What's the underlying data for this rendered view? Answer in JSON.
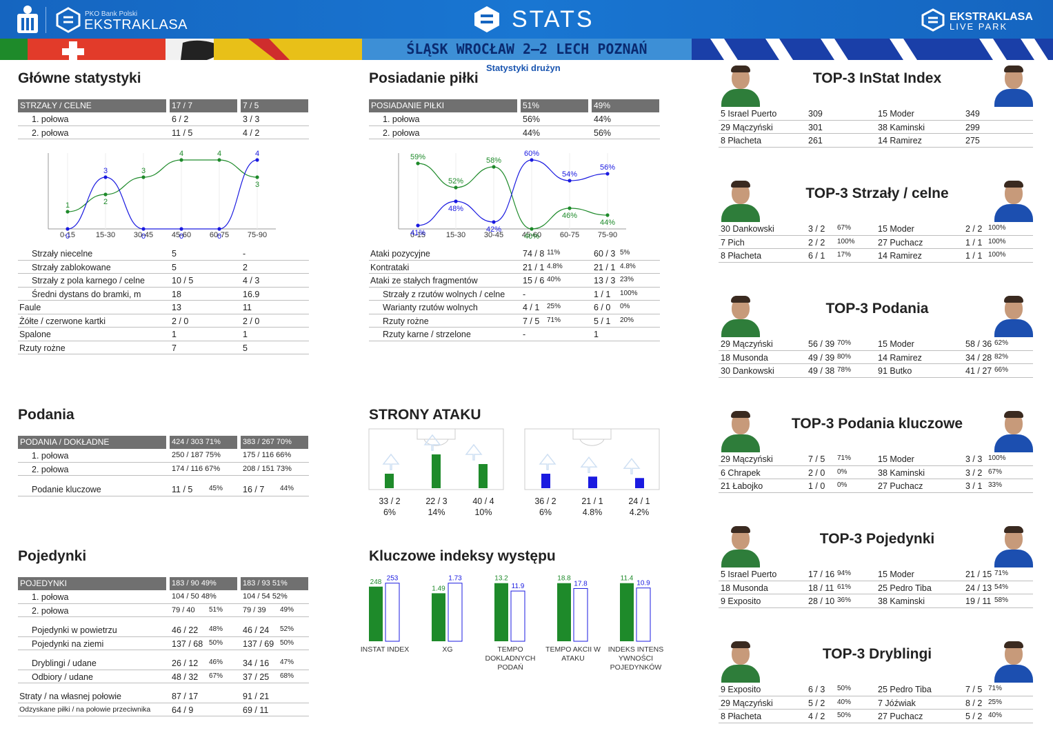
{
  "header": {
    "bank": "PKO Bank Polski",
    "league": "EKSTRAKLASA",
    "title": "STATS",
    "live1": "EKSTRAKLASA",
    "live2": "LIVE PARK"
  },
  "match": "ŚLĄSK WROCŁAW 2–2  LECH POZNAŃ",
  "subtitle": "Statystyki drużyn",
  "colors": {
    "home": "#1e8a2a",
    "away": "#1a1ae0",
    "header": "#1565c0",
    "table_header": "#707070"
  },
  "main": {
    "title": "Główne statystyki",
    "head": [
      "STRZAŁY / CELNE",
      "17 / 7",
      "7 / 5"
    ],
    "halves": [
      [
        "1. połowa",
        "6 / 2",
        "3 / 3"
      ],
      [
        "2. połowa",
        "11 / 5",
        "4 / 2"
      ]
    ],
    "rows": [
      [
        "Strzały niecelne",
        "5",
        "-"
      ],
      [
        "Strzały zablokowane",
        "5",
        "2"
      ],
      [
        "Strzały z pola karnego / celne",
        "10 / 5",
        "4 / 3"
      ],
      [
        "Średni dystans do bramki, m",
        "18",
        "16.9"
      ],
      [
        "Faule",
        "13",
        "11"
      ],
      [
        "Żółte / czerwone kartki",
        "2 / 0",
        "2 / 0"
      ],
      [
        "Spalone",
        "1",
        "1"
      ],
      [
        "Rzuty rożne",
        "7",
        "5"
      ]
    ]
  },
  "chart_data": [
    {
      "type": "line",
      "categories": [
        "0-15",
        "15-30",
        "30-45",
        "45-60",
        "60-75",
        "75-90"
      ],
      "series": [
        {
          "values": [
            1,
            2,
            3,
            4,
            4,
            3
          ]
        },
        {
          "values": [
            0,
            3,
            0,
            0,
            0,
            4
          ]
        }
      ]
    },
    {
      "type": "line",
      "categories": [
        "0-15",
        "15-30",
        "30-45",
        "45-60",
        "60-75",
        "75-90"
      ],
      "series": [
        {
          "values": [
            59,
            52,
            58,
            40,
            46,
            44
          ]
        },
        {
          "values": [
            41,
            48,
            42,
            60,
            54,
            56
          ]
        }
      ]
    },
    {
      "type": "bar",
      "title": "STRONY ATAKU",
      "series": [
        {
          "values": [
            6,
            14,
            10
          ],
          "labels": [
            "33 / 2",
            "22 / 3",
            "40 / 4"
          ],
          "pct": [
            "6%",
            "14%",
            "10%"
          ]
        },
        {
          "values": [
            6,
            4.8,
            4.2
          ],
          "labels": [
            "36 / 2",
            "21 / 1",
            "24 / 1"
          ],
          "pct": [
            "6%",
            "4.8%",
            "4.2%"
          ]
        }
      ]
    },
    {
      "type": "bar",
      "title": "Kluczowe indeksy występu",
      "categories": [
        "INSTAT INDEX",
        "XG",
        "TEMPO DOKLADNYCH PODAŃ",
        "TEMPO AKCII W ATAKU",
        "INDEKS INTENS YWNOŚCI POJEDYNKÓW"
      ],
      "series": [
        {
          "values": [
            248,
            1.49,
            13.2,
            18.8,
            11.4
          ]
        },
        {
          "values": [
            253,
            1.73,
            11.9,
            17.8,
            10.9
          ]
        }
      ]
    }
  ],
  "pos": {
    "title": "Posiadanie piłki",
    "head": [
      "POSIADANIE PIŁKI",
      "51%",
      "49%"
    ],
    "halves": [
      [
        "1. połowa",
        "56%",
        "44%"
      ],
      [
        "2. połowa",
        "44%",
        "56%"
      ]
    ],
    "chart_labels_home": [
      "59%",
      "52%",
      "58%",
      "40%",
      "46%",
      "44%"
    ],
    "chart_labels_away": [
      "41%",
      "48%",
      "42%",
      "60%",
      "54%",
      "56%"
    ],
    "rows": [
      [
        "Ataki pozycyjne",
        "74 / 8",
        "11%",
        "60 / 3",
        "5%"
      ],
      [
        "Kontrataki",
        "21 / 1",
        "4.8%",
        "21 / 1",
        "4.8%"
      ],
      [
        "Ataki ze stałych fragmentów",
        "15 / 6",
        "40%",
        "13 / 3",
        "23%"
      ],
      [
        "Strzały z rzutów wolnych / celne",
        "-",
        "",
        "1 / 1",
        "100%"
      ],
      [
        "Warianty rzutów wolnych",
        "4 / 1",
        "25%",
        "6 / 0",
        "0%"
      ],
      [
        "Rzuty rożne",
        "7 / 5",
        "71%",
        "5 / 1",
        "20%"
      ],
      [
        "Rzuty karne / strzelone",
        "-",
        "",
        "1",
        ""
      ]
    ]
  },
  "passes": {
    "title": "Podania",
    "head": [
      "PODANIA / DOKŁADNE",
      "424 / 303 71%",
      "383 / 267 70%"
    ],
    "rows": [
      [
        "1. połowa",
        "250 / 187 75%",
        "175 / 116 66%"
      ],
      [
        "2. połowa",
        "174 / 116 67%",
        "208 / 151 73%"
      ]
    ],
    "key": [
      "Podanie kluczowe",
      "11 / 5",
      "45%",
      "16 / 7",
      "44%"
    ]
  },
  "attack_title": "STRONY ATAKU",
  "duels": {
    "title": "Pojedynki",
    "head": [
      "POJEDYNKI",
      "183 / 90 49%",
      "183 / 93 51%"
    ],
    "halves": [
      [
        "1. połowa",
        "104 / 50 48%",
        "104 / 54 52%"
      ],
      [
        "2. połowa",
        "79 / 40",
        "51%",
        "79 / 39",
        "49%"
      ]
    ],
    "g1": [
      [
        "Pojedynki w powietrzu",
        "46 / 22",
        "48%",
        "46 / 24",
        "52%"
      ],
      [
        "Pojedynki na ziemi",
        "137 / 68",
        "50%",
        "137 / 69",
        "50%"
      ]
    ],
    "g2": [
      [
        "Dryblingi / udane",
        "26 / 12",
        "46%",
        "34 / 16",
        "47%"
      ],
      [
        "Odbiory / udane",
        "48 / 32",
        "67%",
        "37 / 25",
        "68%"
      ]
    ],
    "g3": [
      [
        "Straty / na własnej połowie",
        "87 / 17",
        "",
        "91 / 21",
        ""
      ],
      [
        "Odzyskane piłki / na połowie przeciwnika",
        "64 / 9",
        "",
        "69 / 11",
        ""
      ]
    ]
  },
  "key_title": "Kluczowe indeksy występu",
  "key_labels": [
    "INSTAT INDEX",
    "XG",
    "TEMPO\nDOKLADNYCH\nPODAŃ",
    "TEMPO AKCII W\nATAKU",
    "INDEKS INTENS\nYWNOŚCI\nPOJEDYNKÓW"
  ],
  "key_home": [
    "248",
    "1.49",
    "13.2",
    "18.8",
    "11.4"
  ],
  "key_away": [
    "253",
    "1.73",
    "11.9",
    "17.8",
    "10.9"
  ],
  "tops": [
    {
      "title": "TOP-3 InStat Index",
      "rows": [
        [
          "5  Israel Puerto",
          "309",
          "",
          "15 Moder",
          "349",
          ""
        ],
        [
          "29 Mączyński",
          "301",
          "",
          "38 Kaminski",
          "299",
          ""
        ],
        [
          "8  Płacheta",
          "261",
          "",
          "14 Ramirez",
          "275",
          ""
        ]
      ]
    },
    {
      "title": "TOP-3 Strzały / celne",
      "rows": [
        [
          "30 Dankowski",
          "3 / 2",
          "67%",
          "15 Moder",
          "2 / 2",
          "100%"
        ],
        [
          "7  Pich",
          "2 / 2",
          "100%",
          "27 Puchacz",
          "1 / 1",
          "100%"
        ],
        [
          "8  Płacheta",
          "6 / 1",
          "17%",
          "14 Ramirez",
          "1 / 1",
          "100%"
        ]
      ]
    },
    {
      "title": "TOP-3 Podania",
      "rows": [
        [
          "29 Mączyński",
          "56 / 39",
          "70%",
          "15 Moder",
          "58 / 36",
          "62%"
        ],
        [
          "18 Musonda",
          "49 / 39",
          "80%",
          "14 Ramirez",
          "34 / 28",
          "82%"
        ],
        [
          "30 Dankowski",
          "49 / 38",
          "78%",
          "91 Butko",
          "41 / 27",
          "66%"
        ]
      ]
    },
    {
      "title": "TOP-3 Podania kluczowe",
      "rows": [
        [
          "29 Mączyński",
          "7 / 5",
          "71%",
          "15 Moder",
          "3 / 3",
          "100%"
        ],
        [
          "6  Chrapek",
          "2 / 0",
          "0%",
          "38 Kaminski",
          "3 / 2",
          "67%"
        ],
        [
          "21 Łabojko",
          "1 / 0",
          "0%",
          "27 Puchacz",
          "3 / 1",
          "33%"
        ]
      ]
    },
    {
      "title": "TOP-3 Pojedynki",
      "rows": [
        [
          "5  Israel Puerto",
          "17 / 16",
          "94%",
          "15 Moder",
          "21 / 15",
          "71%"
        ],
        [
          "18 Musonda",
          "18 / 11",
          "61%",
          "25 Pedro Tiba",
          "24 / 13",
          "54%"
        ],
        [
          "9  Exposito",
          "28 / 10",
          "36%",
          "38 Kaminski",
          "19 / 11",
          "58%"
        ]
      ]
    },
    {
      "title": "TOP-3 Dryblingi",
      "rows": [
        [
          "9  Exposito",
          "6 / 3",
          "50%",
          "25 Pedro Tiba",
          "7 / 5",
          "71%"
        ],
        [
          "29 Mączyński",
          "5 / 2",
          "40%",
          "7  Jóźwiak",
          "8 / 2",
          "25%"
        ],
        [
          "8  Płacheta",
          "4 / 2",
          "50%",
          "27 Puchacz",
          "5 / 2",
          "40%"
        ]
      ]
    }
  ]
}
